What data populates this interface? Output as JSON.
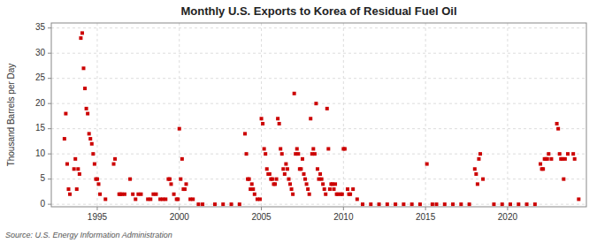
{
  "chart_data": {
    "type": "scatter",
    "title": "Monthly U.S. Exports to Korea of Residual Fuel Oil",
    "ylabel": "Thousand Barrels per Day",
    "annotations": [
      "Source: U.S. Energy Information Administration"
    ],
    "color": "#cc0000",
    "marker": "square",
    "grid": true,
    "xlim": [
      1992.2,
      2024.8
    ],
    "ylim": [
      -0.5,
      36
    ],
    "xticks": [
      1995,
      2000,
      2005,
      2010,
      2015,
      2020
    ],
    "yticks": [
      0,
      5,
      10,
      15,
      20,
      25,
      30,
      35
    ],
    "x": [
      1993,
      1993.0833333333333,
      1993.1666666666667,
      1993.25,
      1993.3333333333333,
      1993.5833333333333,
      1993.6666666666667,
      1993.75,
      1993.8333333333333,
      1993.9166666666667,
      1994,
      1994.0833333333333,
      1994.1666666666667,
      1994.25,
      1994.3333333333333,
      1994.4166666666667,
      1994.5,
      1994.5833333333333,
      1994.6666666666667,
      1994.75,
      1994.8333333333333,
      1994.9166666666667,
      1995,
      1995.0833333333333,
      1995.1666666666667,
      1995.5,
      1996,
      1996.0833333333333,
      1996.3333333333333,
      1996.4166666666667,
      1996.5,
      1996.6666666666667,
      1997,
      1997.1666666666667,
      1997.3333333333333,
      1997.5,
      1997.6666666666667,
      1998.0833333333333,
      1998.25,
      1998.4166666666667,
      1998.5833333333333,
      1998.8333333333333,
      1999,
      1999.1666666666667,
      1999.3333333333333,
      1999.4166666666667,
      1999.5,
      1999.6666666666667,
      1999.8333333333333,
      1999.9166666666667,
      2000,
      2000.0833333333333,
      2000.1666666666667,
      2000.25,
      2000.3333333333333,
      2000.4166666666667,
      2000.6666666666667,
      2000.8333333333333,
      2001.1666666666667,
      2001.4166666666667,
      2002.1666666666667,
      2002.6666666666667,
      2003.1666666666667,
      2003.6666666666667,
      2004,
      2004.0833333333333,
      2004.1666666666667,
      2004.25,
      2004.3333333333333,
      2004.4166666666667,
      2004.5,
      2004.5833333333333,
      2004.75,
      2004.9166666666667,
      2005,
      2005.0833333333333,
      2005.1666666666667,
      2005.25,
      2005.3333333333333,
      2005.4166666666667,
      2005.5,
      2005.5833333333333,
      2005.6666666666667,
      2005.75,
      2005.8333333333333,
      2005.9166666666667,
      2006,
      2006.0833333333333,
      2006.1666666666667,
      2006.25,
      2006.3333333333333,
      2006.4166666666667,
      2006.5,
      2006.5833333333333,
      2006.6666666666667,
      2006.75,
      2006.8333333333333,
      2006.9166666666667,
      2007,
      2007.0833333333333,
      2007.1666666666667,
      2007.25,
      2007.3333333333333,
      2007.4166666666667,
      2007.5,
      2007.5833333333333,
      2007.6666666666667,
      2007.75,
      2007.8333333333333,
      2007.9166666666667,
      2008,
      2008.0833333333333,
      2008.1666666666667,
      2008.25,
      2008.3333333333333,
      2008.4166666666667,
      2008.5,
      2008.5833333333333,
      2008.6666666666667,
      2008.75,
      2008.8333333333333,
      2008.9166666666667,
      2009,
      2009.0833333333333,
      2009.1666666666667,
      2009.25,
      2009.3333333333333,
      2009.4166666666667,
      2009.5,
      2009.5833333333333,
      2009.6666666666667,
      2009.8333333333333,
      2009.9166666666667,
      2010,
      2010.0833333333333,
      2010.25,
      2010.3333333333333,
      2010.4166666666667,
      2010.5833333333333,
      2010.8333333333333,
      2011.1666666666667,
      2011.6666666666667,
      2012.1666666666667,
      2012.6666666666667,
      2013.1666666666667,
      2013.6666666666667,
      2014.1666666666667,
      2014.6666666666667,
      2015.0833333333333,
      2015.4166666666667,
      2015.6666666666667,
      2016.1666666666667,
      2016.6666666666667,
      2017.1666666666667,
      2017.6666666666667,
      2018,
      2018.0833333333333,
      2018.1666666666667,
      2018.25,
      2018.3333333333333,
      2018.5,
      2019.1666666666667,
      2019.6666666666667,
      2020.1666666666667,
      2020.6666666666667,
      2021.1666666666667,
      2021.6666666666667,
      2022,
      2022.0833333333333,
      2022.1666666666667,
      2022.25,
      2022.3333333333333,
      2022.4166666666667,
      2022.5,
      2022.6666666666667,
      2023,
      2023.0833333333333,
      2023.1666666666667,
      2023.25,
      2023.3333333333333,
      2023.4166666666667,
      2023.5,
      2023.6666666666667,
      2024,
      2024.0833333333333,
      2024.3333333333333
    ],
    "values": [
      13,
      18,
      8,
      3,
      2,
      7,
      9,
      3,
      7,
      6,
      33,
      34,
      27,
      23,
      19,
      18,
      14,
      13,
      12,
      10,
      8,
      5,
      5,
      4,
      2,
      1,
      8,
      9,
      2,
      2,
      2,
      2,
      5,
      2,
      1,
      2,
      2,
      1,
      1,
      2,
      2,
      1,
      1,
      1,
      5,
      5,
      4,
      2,
      1,
      1,
      15,
      5,
      9,
      3,
      3,
      4,
      1,
      1,
      0,
      0,
      0,
      0,
      0,
      0,
      14,
      10,
      5,
      5,
      3,
      4,
      3,
      2,
      1,
      1,
      17,
      16,
      11,
      10,
      7,
      6,
      6,
      5,
      5,
      4,
      4,
      5,
      17,
      16,
      11,
      10,
      7,
      6,
      8,
      7,
      5,
      4,
      3,
      2,
      22,
      10,
      11,
      10,
      7,
      7,
      9,
      6,
      5,
      4,
      3,
      2,
      17,
      10,
      11,
      10,
      20,
      7,
      5,
      6,
      5,
      4,
      3,
      2,
      19,
      11,
      3,
      4,
      4,
      3,
      4,
      2,
      2,
      2,
      2,
      11,
      11,
      3,
      2,
      2,
      3,
      1,
      0,
      0,
      0,
      0,
      0,
      0,
      0,
      0,
      8,
      0,
      0,
      0,
      0,
      0,
      0,
      7,
      6,
      4,
      9,
      10,
      5,
      0,
      0,
      0,
      0,
      0,
      0,
      8,
      7,
      7,
      9,
      9,
      9,
      10,
      9,
      16,
      15,
      10,
      9,
      9,
      5,
      9,
      10,
      10,
      9,
      1
    ]
  }
}
